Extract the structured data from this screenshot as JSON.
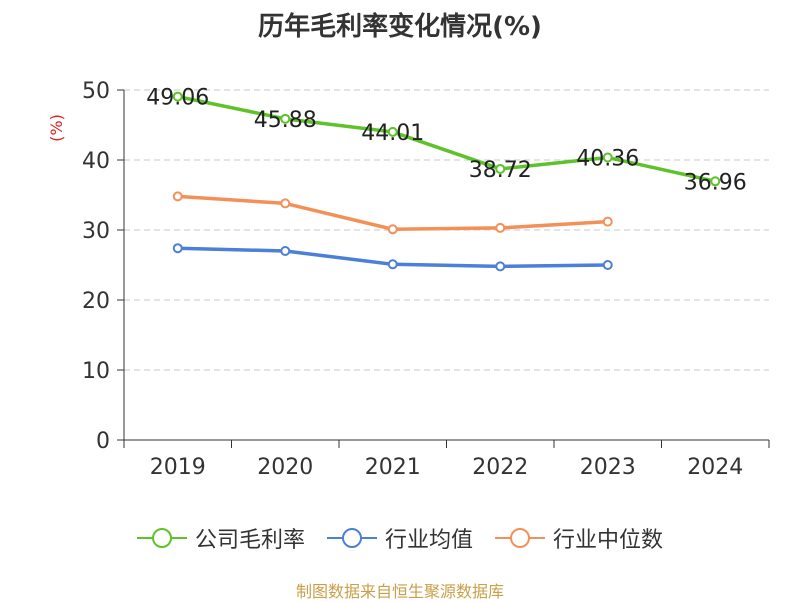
{
  "title": "历年毛利率变化情况(%)",
  "source_note": "制图数据来自恒生聚源数据库",
  "chart_data": {
    "type": "line",
    "title": "历年毛利率变化情况(%)",
    "xlabel": "",
    "ylabel": "(%)",
    "ylim": [
      0,
      50
    ],
    "yticks": [
      0,
      10,
      20,
      30,
      40,
      50
    ],
    "categories": [
      "2019",
      "2020",
      "2021",
      "2022",
      "2023",
      "2024"
    ],
    "grid": true,
    "legend_position": "bottom",
    "series": [
      {
        "name": "公司毛利率",
        "color": "#5ec22a",
        "show_labels": true,
        "values": [
          49.06,
          45.88,
          44.01,
          38.72,
          40.36,
          36.96
        ]
      },
      {
        "name": "行业均值",
        "color": "#4c7fd8",
        "show_labels": false,
        "values": [
          27.4,
          27.0,
          25.1,
          24.8,
          25.0,
          null
        ]
      },
      {
        "name": "行业中位数",
        "color": "#f39057",
        "show_labels": false,
        "values": [
          34.8,
          33.8,
          30.1,
          30.3,
          31.2,
          null
        ]
      }
    ]
  }
}
